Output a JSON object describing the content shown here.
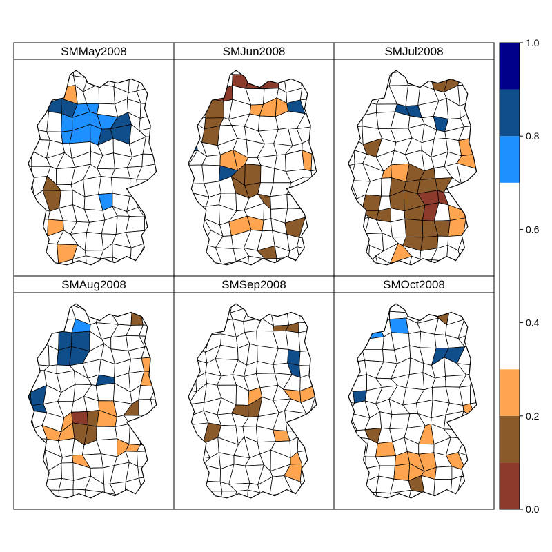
{
  "figure_type": "choropleth map panels",
  "region": "Germany districts",
  "panels": [
    {
      "title": "SMMay2008",
      "highlight": [
        {
          "cls": 5,
          "blobs": [
            [
              0.4,
              0.22,
              0.2,
              0.06
            ],
            [
              0.55,
              0.3,
              0.2,
              0.06
            ]
          ]
        },
        {
          "cls": 4,
          "blobs": [
            [
              0.48,
              0.28,
              0.12,
              0.08
            ],
            [
              0.35,
              0.33,
              0.1,
              0.06
            ],
            [
              0.58,
              0.66,
              0.08,
              0.05
            ]
          ]
        },
        {
          "cls": 3,
          "blobs": [
            [
              0.57,
              0.22,
              0.07,
              0.05
            ]
          ]
        },
        {
          "cls": 1,
          "blobs": [
            [
              0.2,
              0.62,
              0.06,
              0.05
            ]
          ]
        },
        {
          "cls": 2,
          "blobs": [
            [
              0.18,
              0.45,
              0.05,
              0.03
            ],
            [
              0.19,
              0.8,
              0.06,
              0.04
            ],
            [
              0.35,
              0.9,
              0.06,
              0.03
            ],
            [
              0.3,
              0.18,
              0.04,
              0.03
            ]
          ]
        }
      ]
    },
    {
      "title": "SMJun2008",
      "highlight": [
        {
          "cls": 0,
          "blobs": [
            [
              0.5,
              0.08,
              0.1,
              0.04
            ],
            [
              0.28,
              0.17,
              0.1,
              0.04
            ],
            [
              0.82,
              0.86,
              0.04,
              0.04
            ]
          ]
        },
        {
          "cls": 1,
          "blobs": [
            [
              0.24,
              0.28,
              0.06,
              0.08
            ],
            [
              0.45,
              0.55,
              0.1,
              0.06
            ],
            [
              0.6,
              0.65,
              0.06,
              0.05
            ],
            [
              0.75,
              0.78,
              0.06,
              0.04
            ],
            [
              0.57,
              0.88,
              0.08,
              0.03
            ]
          ]
        },
        {
          "cls": 2,
          "blobs": [
            [
              0.62,
              0.2,
              0.14,
              0.04
            ],
            [
              0.35,
              0.48,
              0.08,
              0.04
            ],
            [
              0.86,
              0.48,
              0.04,
              0.04
            ],
            [
              0.45,
              0.78,
              0.1,
              0.03
            ]
          ]
        },
        {
          "cls": 5,
          "blobs": [
            [
              0.78,
              0.22,
              0.06,
              0.06
            ],
            [
              0.55,
              0.37,
              0.05,
              0.03
            ],
            [
              0.08,
              0.42,
              0.04,
              0.03
            ],
            [
              0.32,
              0.56,
              0.06,
              0.03
            ]
          ]
        }
      ]
    },
    {
      "title": "SMJul2008",
      "highlight": [
        {
          "cls": 1,
          "blobs": [
            [
              0.52,
              0.6,
              0.18,
              0.12
            ],
            [
              0.25,
              0.7,
              0.08,
              0.06
            ],
            [
              0.55,
              0.8,
              0.15,
              0.05
            ],
            [
              0.22,
              0.4,
              0.04,
              0.05
            ],
            [
              0.72,
              0.1,
              0.08,
              0.03
            ]
          ]
        },
        {
          "cls": 0,
          "blobs": [
            [
              0.62,
              0.68,
              0.08,
              0.05
            ],
            [
              0.28,
              0.82,
              0.04,
              0.03
            ]
          ]
        },
        {
          "cls": 2,
          "blobs": [
            [
              0.18,
              0.25,
              0.05,
              0.04
            ],
            [
              0.85,
              0.42,
              0.05,
              0.06
            ],
            [
              0.37,
              0.55,
              0.08,
              0.05
            ],
            [
              0.78,
              0.74,
              0.06,
              0.05
            ],
            [
              0.42,
              0.88,
              0.12,
              0.03
            ]
          ]
        },
        {
          "cls": 4,
          "blobs": [
            [
              0.06,
              0.4,
              0.03,
              0.05
            ]
          ]
        },
        {
          "cls": 5,
          "blobs": [
            [
              0.45,
              0.22,
              0.1,
              0.05
            ],
            [
              0.7,
              0.27,
              0.06,
              0.05
            ],
            [
              0.62,
              0.85,
              0.03,
              0.02
            ]
          ]
        }
      ]
    },
    {
      "title": "SMAug2008",
      "highlight": [
        {
          "cls": 4,
          "blobs": [
            [
              0.25,
              0.18,
              0.1,
              0.03
            ],
            [
              0.4,
              0.15,
              0.05,
              0.03
            ]
          ]
        },
        {
          "cls": 5,
          "blobs": [
            [
              0.4,
              0.25,
              0.1,
              0.06
            ],
            [
              0.1,
              0.48,
              0.08,
              0.06
            ],
            [
              0.55,
              0.35,
              0.04,
              0.05
            ],
            [
              0.6,
              0.42,
              0.04,
              0.03
            ],
            [
              0.12,
              0.7,
              0.03,
              0.02
            ]
          ]
        },
        {
          "cls": 1,
          "blobs": [
            [
              0.45,
              0.62,
              0.15,
              0.08
            ],
            [
              0.78,
              0.1,
              0.08,
              0.04
            ],
            [
              0.8,
              0.55,
              0.05,
              0.04
            ]
          ]
        },
        {
          "cls": 0,
          "blobs": [
            [
              0.42,
              0.57,
              0.04,
              0.03
            ]
          ]
        },
        {
          "cls": 2,
          "blobs": [
            [
              0.3,
              0.65,
              0.08,
              0.06
            ],
            [
              0.62,
              0.56,
              0.06,
              0.05
            ],
            [
              0.7,
              0.72,
              0.08,
              0.05
            ],
            [
              0.4,
              0.8,
              0.06,
              0.04
            ],
            [
              0.85,
              0.38,
              0.04,
              0.04
            ],
            [
              0.45,
              0.88,
              0.06,
              0.03
            ]
          ]
        }
      ]
    },
    {
      "title": "SMSep2008",
      "highlight": [
        {
          "cls": 1,
          "blobs": [
            [
              0.72,
              0.15,
              0.08,
              0.04
            ],
            [
              0.45,
              0.52,
              0.12,
              0.05
            ],
            [
              0.25,
              0.68,
              0.06,
              0.04
            ]
          ]
        },
        {
          "cls": 2,
          "blobs": [
            [
              0.5,
              0.45,
              0.1,
              0.04
            ],
            [
              0.82,
              0.48,
              0.05,
              0.04
            ],
            [
              0.7,
              0.65,
              0.06,
              0.05
            ],
            [
              0.38,
              0.88,
              0.06,
              0.03
            ],
            [
              0.2,
              0.75,
              0.05,
              0.03
            ],
            [
              0.78,
              0.82,
              0.06,
              0.04
            ]
          ]
        },
        {
          "cls": 5,
          "blobs": [
            [
              0.75,
              0.3,
              0.05,
              0.05
            ],
            [
              0.38,
              0.13,
              0.03,
              0.03
            ],
            [
              0.06,
              0.62,
              0.03,
              0.03
            ],
            [
              0.12,
              0.92,
              0.03,
              0.02
            ]
          ]
        }
      ]
    },
    {
      "title": "SMOct2008",
      "highlight": [
        {
          "cls": 6,
          "blobs": [
            [
              0.35,
              0.12,
              0.03,
              0.03
            ]
          ]
        },
        {
          "cls": 4,
          "blobs": [
            [
              0.25,
              0.18,
              0.1,
              0.03
            ],
            [
              0.37,
              0.17,
              0.05,
              0.03
            ],
            [
              0.7,
              0.28,
              0.04,
              0.04
            ]
          ]
        },
        {
          "cls": 5,
          "blobs": [
            [
              0.72,
              0.3,
              0.06,
              0.05
            ],
            [
              0.12,
              0.48,
              0.04,
              0.04
            ],
            [
              0.35,
              0.3,
              0.03,
              0.02
            ]
          ]
        },
        {
          "cls": 1,
          "blobs": [
            [
              0.7,
              0.12,
              0.06,
              0.03
            ],
            [
              0.25,
              0.65,
              0.04,
              0.05
            ],
            [
              0.5,
              0.85,
              0.12,
              0.06
            ]
          ]
        },
        {
          "cls": 2,
          "blobs": [
            [
              0.5,
              0.82,
              0.18,
              0.05
            ],
            [
              0.3,
              0.72,
              0.05,
              0.04
            ],
            [
              0.85,
              0.52,
              0.04,
              0.03
            ],
            [
              0.75,
              0.78,
              0.04,
              0.04
            ],
            [
              0.55,
              0.65,
              0.05,
              0.04
            ]
          ]
        }
      ]
    }
  ],
  "colorkey": {
    "ticks": [
      "0.0",
      "0.2",
      "0.4",
      "0.6",
      "0.8",
      "1.0"
    ],
    "bins": [
      {
        "from": 0.0,
        "to": 0.1,
        "color": "#8B3A2B"
      },
      {
        "from": 0.1,
        "to": 0.2,
        "color": "#8B5A2B"
      },
      {
        "from": 0.2,
        "to": 0.3,
        "color": "#FFA54F"
      },
      {
        "from": 0.3,
        "to": 0.7,
        "color": "#FFFFFF"
      },
      {
        "from": 0.7,
        "to": 0.8,
        "color": "#1E90FF"
      },
      {
        "from": 0.8,
        "to": 0.9,
        "color": "#104E8B"
      },
      {
        "from": 0.9,
        "to": 1.0,
        "color": "#00008B"
      }
    ]
  }
}
